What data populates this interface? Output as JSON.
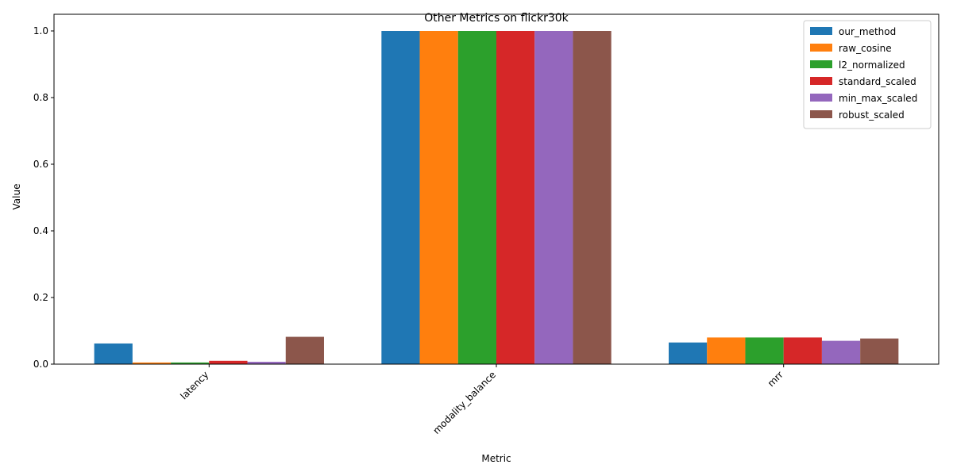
{
  "chart_data": {
    "type": "bar",
    "title": "Other Metrics on flickr30k",
    "xlabel": "Metric",
    "ylabel": "Value",
    "categories": [
      "latency",
      "modality_balance",
      "mrr"
    ],
    "ylim": [
      0,
      1.05
    ],
    "yticks": [
      0.0,
      0.2,
      0.4,
      0.6,
      0.8,
      1.0
    ],
    "ytick_labels": [
      "0.0",
      "0.2",
      "0.4",
      "0.6",
      "0.8",
      "1.0"
    ],
    "grid": false,
    "legend_position": "top-right",
    "series": [
      {
        "name": "our_method",
        "color": "#1f77b4",
        "values": [
          0.062,
          1.0,
          0.065
        ]
      },
      {
        "name": "raw_cosine",
        "color": "#ff7f0e",
        "values": [
          0.005,
          1.0,
          0.08
        ]
      },
      {
        "name": "l2_normalized",
        "color": "#2ca02c",
        "values": [
          0.005,
          1.0,
          0.08
        ]
      },
      {
        "name": "standard_scaled",
        "color": "#d62728",
        "values": [
          0.01,
          1.0,
          0.08
        ]
      },
      {
        "name": "min_max_scaled",
        "color": "#9467bd",
        "values": [
          0.007,
          1.0,
          0.07
        ]
      },
      {
        "name": "robust_scaled",
        "color": "#8c564b",
        "values": [
          0.082,
          1.0,
          0.077
        ]
      }
    ]
  }
}
